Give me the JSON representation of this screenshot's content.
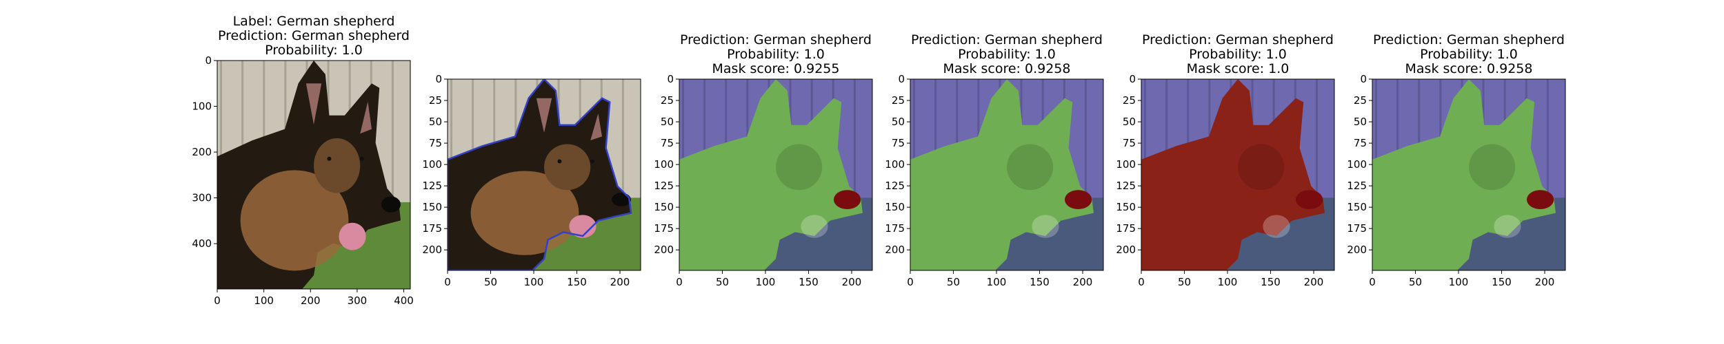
{
  "panels": [
    {
      "title_lines": [
        "Label: German shepherd",
        "Prediction: German shepherd",
        "Probability: 1.0"
      ],
      "x_ticks": [
        "0",
        "100",
        "200",
        "300",
        "400"
      ],
      "y_ticks": [
        "0",
        "100",
        "200",
        "300",
        "400"
      ],
      "x_range": [
        0,
        414
      ],
      "y_range": [
        0,
        499
      ],
      "image": "original-dog-photo"
    },
    {
      "title_lines": [],
      "x_ticks": [
        "0",
        "50",
        "100",
        "150",
        "200"
      ],
      "y_ticks": [
        "0",
        "25",
        "50",
        "75",
        "100",
        "125",
        "150",
        "175",
        "200"
      ],
      "x_range": [
        0,
        224
      ],
      "y_range": [
        0,
        224
      ],
      "image": "dog-with-blue-contour"
    },
    {
      "title_lines": [
        "Prediction: German shepherd",
        "Probability: 1.0",
        "Mask score: 0.9255"
      ],
      "x_ticks": [
        "0",
        "50",
        "100",
        "150",
        "200"
      ],
      "y_ticks": [
        "0",
        "25",
        "50",
        "75",
        "100",
        "125",
        "150",
        "175",
        "200"
      ],
      "x_range": [
        0,
        224
      ],
      "y_range": [
        0,
        224
      ],
      "image": "green-mask-overlay"
    },
    {
      "title_lines": [
        "Prediction: German shepherd",
        "Probability: 1.0",
        "Mask score: 0.9258"
      ],
      "x_ticks": [
        "0",
        "50",
        "100",
        "150",
        "200"
      ],
      "y_ticks": [
        "0",
        "25",
        "50",
        "75",
        "100",
        "125",
        "150",
        "175",
        "200"
      ],
      "x_range": [
        0,
        224
      ],
      "y_range": [
        0,
        224
      ],
      "image": "green-mask-overlay"
    },
    {
      "title_lines": [
        "Prediction: German shepherd",
        "Probability: 1.0",
        "Mask score: 1.0"
      ],
      "x_ticks": [
        "0",
        "50",
        "100",
        "150",
        "200"
      ],
      "y_ticks": [
        "0",
        "25",
        "50",
        "75",
        "100",
        "125",
        "150",
        "175",
        "200"
      ],
      "x_range": [
        0,
        224
      ],
      "y_range": [
        0,
        224
      ],
      "image": "red-mask-overlay"
    },
    {
      "title_lines": [
        "Prediction: German shepherd",
        "Probability: 1.0",
        "Mask score: 0.9258"
      ],
      "x_ticks": [
        "0",
        "50",
        "100",
        "150",
        "200"
      ],
      "y_ticks": [
        "0",
        "25",
        "50",
        "75",
        "100",
        "125",
        "150",
        "175",
        "200"
      ],
      "x_range": [
        0,
        224
      ],
      "y_range": [
        0,
        224
      ],
      "image": "green-mask-overlay"
    }
  ],
  "colors": {
    "fence": "#c9c4b6",
    "grass": "#5f8a3a",
    "fur_dark": "#231a12",
    "fur_tan": "#9a6a3c",
    "tongue": "#d98aa0",
    "contour": "#3340c8",
    "mask_bg": "#6f6ab0",
    "mask_green": "#6fae52",
    "mask_red": "#8a2218",
    "nose": "#7a0c10"
  }
}
